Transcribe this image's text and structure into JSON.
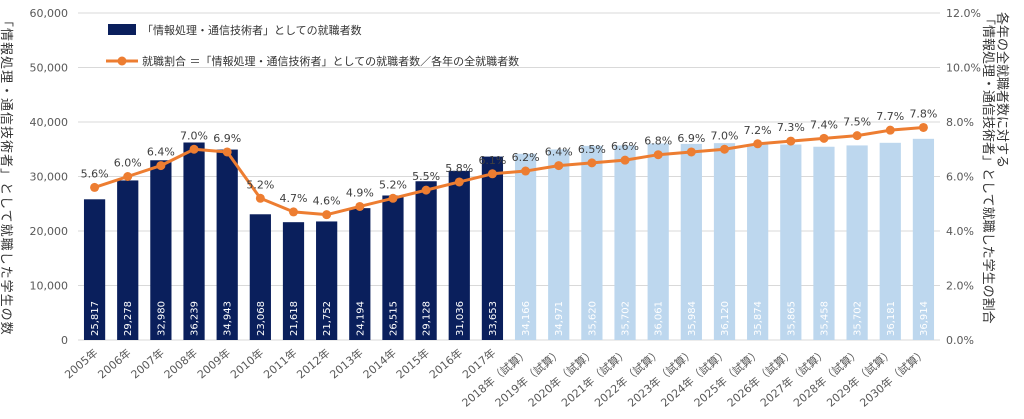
{
  "colors": {
    "actual_bar": "#0a1f5c",
    "estimate_bar": "#bdd7ee",
    "ratio_line": "#ed7d31",
    "grid": "#d9d9d9",
    "axis_text": "#595959"
  },
  "legend": {
    "bar_label": "「情報処理・通信技術者」としての就職者数",
    "line_label": "就職割合 ＝「情報処理・通信技術者」としての就職者数／各年の全就職者数"
  },
  "chart_data": {
    "type": "bar",
    "categories": [
      "2005年",
      "2006年",
      "2007年",
      "2008年",
      "2009年",
      "2010年",
      "2011年",
      "2012年",
      "2013年",
      "2014年",
      "2015年",
      "2016年",
      "2017年",
      "2018年（試算）",
      "2019年（試算）",
      "2020年（試算）",
      "2021年（試算）",
      "2022年（試算）",
      "2023年（試算）",
      "2024年（試算）",
      "2025年（試算）",
      "2026年（試算）",
      "2027年（試算）",
      "2028年（試算）",
      "2029年（試算）",
      "2030年（試算）"
    ],
    "series": [
      {
        "name": "「情報処理・通信技術者」としての就職者数",
        "type": "bar",
        "axis": "left",
        "values": [
          25817,
          29278,
          32980,
          36239,
          34943,
          23068,
          21618,
          21752,
          24194,
          26515,
          29128,
          31036,
          33653,
          34166,
          34971,
          35620,
          35702,
          36061,
          35984,
          36120,
          35874,
          35865,
          35458,
          35702,
          36181,
          36914
        ],
        "value_labels": [
          "25,817",
          "29,278",
          "32,980",
          "36,239",
          "34,943",
          "23,068",
          "21,618",
          "21,752",
          "24,194",
          "26,515",
          "29,128",
          "31,036",
          "33,653",
          "34,166",
          "34,971",
          "35,620",
          "35,702",
          "36,061",
          "35,984",
          "36,120",
          "35,874",
          "35,865",
          "35,458",
          "35,702",
          "36,181",
          "36,914"
        ]
      },
      {
        "name": "就職割合 ＝「情報処理・通信技術者」としての就職者数／各年の全就職者数",
        "type": "line",
        "axis": "right",
        "values": [
          5.6,
          6.0,
          6.4,
          7.0,
          6.9,
          5.2,
          4.7,
          4.6,
          4.9,
          5.2,
          5.5,
          5.8,
          6.1,
          6.2,
          6.4,
          6.5,
          6.6,
          6.8,
          6.9,
          7.0,
          7.2,
          7.3,
          7.4,
          7.5,
          7.7,
          7.8
        ],
        "value_labels": [
          "5.6%",
          "6.0%",
          "6.4%",
          "7.0%",
          "6.9%",
          "5.2%",
          "4.7%",
          "4.6%",
          "4.9%",
          "5.2%",
          "5.5%",
          "5.8%",
          "6.1%",
          "6.2%",
          "6.4%",
          "6.5%",
          "6.6%",
          "6.8%",
          "6.9%",
          "7.0%",
          "7.2%",
          "7.3%",
          "7.4%",
          "7.5%",
          "7.7%",
          "7.8%"
        ]
      }
    ],
    "actual_count": 13,
    "y_left": {
      "label": "「情報処理・通信技術者」として就職した学生の数",
      "ylim": [
        0,
        60000
      ],
      "ticks": [
        "0",
        "10,000",
        "20,000",
        "30,000",
        "40,000",
        "50,000",
        "60,000"
      ]
    },
    "y_right": {
      "label": "各年の全就職者数に対する「情報処理・通信技術者」として就職した学生の割合",
      "ylim": [
        0,
        12
      ],
      "ticks": [
        "0.0%",
        "2.0%",
        "4.0%",
        "6.0%",
        "8.0%",
        "10.0%",
        "12.0%"
      ]
    },
    "grid": true,
    "legend_position": "top-left"
  }
}
